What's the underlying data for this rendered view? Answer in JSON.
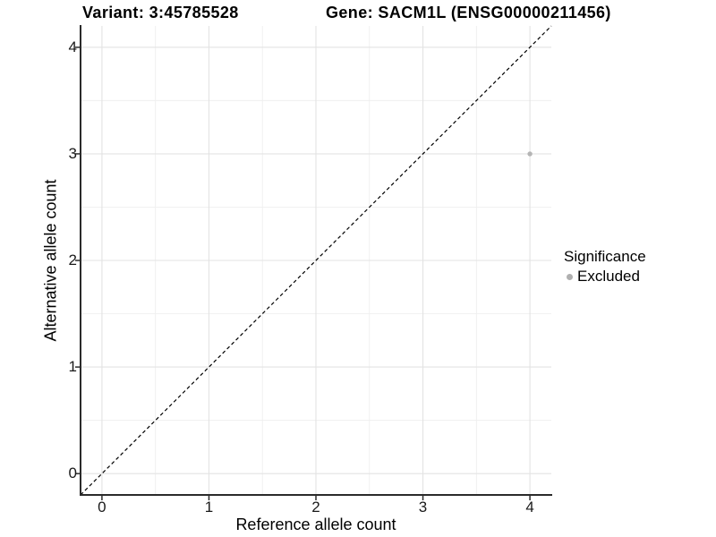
{
  "chart_data": {
    "type": "scatter",
    "titles": [
      "Variant: 3:45785528",
      "Gene: SACM1L (ENSG00000211456)"
    ],
    "xlabel": "Reference allele count",
    "ylabel": "Alternative allele count",
    "xlim": [
      -0.2,
      4.2
    ],
    "ylim": [
      -0.2,
      4.2
    ],
    "x_ticks": [
      0,
      1,
      2,
      3,
      4
    ],
    "y_ticks": [
      0,
      1,
      2,
      3,
      4
    ],
    "minor_gridlines": [
      0.5,
      1.5,
      2.5,
      3.5
    ],
    "grid": "on",
    "points": [
      {
        "x": 4,
        "y": 3,
        "series": "Excluded"
      }
    ],
    "identity_line": {
      "slope": 1,
      "intercept": 0,
      "style": "dashed",
      "color": "#000000"
    },
    "legend": {
      "title": "Significance",
      "position": "right",
      "entries": [
        {
          "label": "Excluded",
          "marker_color": "#b0b0b0"
        }
      ]
    },
    "colors": {
      "point": "#b5b5b5",
      "grid_major": "#e3e3e3",
      "grid_minor": "#efefef",
      "axis_line": "#2b2b2b",
      "tick_mark": "#2b2b2b"
    }
  }
}
